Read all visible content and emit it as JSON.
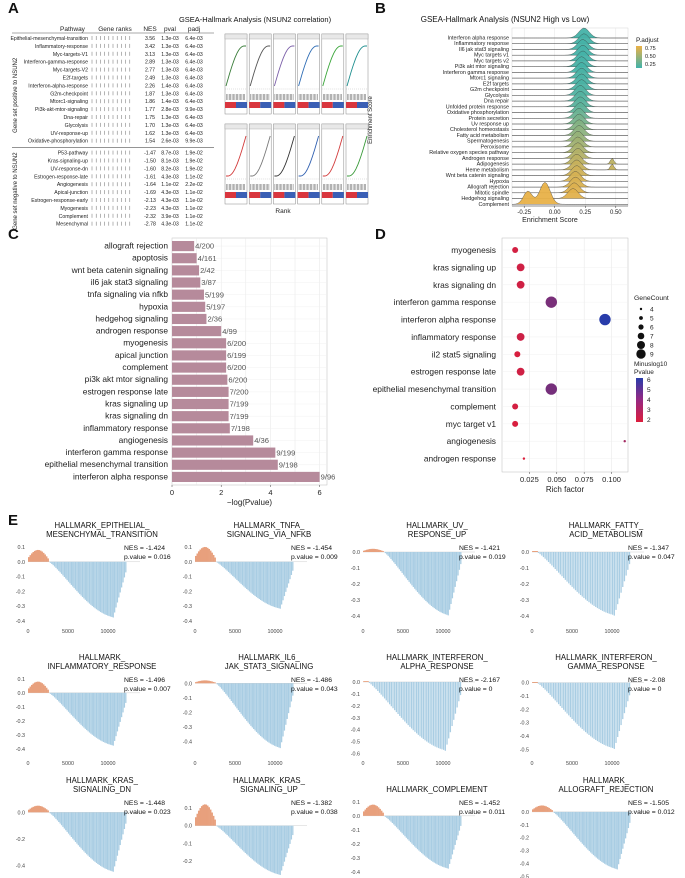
{
  "panels": {
    "a": "A",
    "b": "B",
    "c": "C",
    "d": "D",
    "e": "E"
  },
  "chart_data": [
    {
      "id": "A",
      "type": "table",
      "title": "GSEA-Hallmark Analysis (NSUN2 correlation)",
      "columns": [
        "Pathway",
        "Gene ranks",
        "NES",
        "pval",
        "padj"
      ],
      "group_labels": [
        "Gene set positive to NSUN2",
        "Gene set negative to NSUN2"
      ],
      "xlabel": "Rank",
      "ylabel": "Enrichment Score",
      "positive": [
        {
          "pathway": "Epithelial-mesenchymal-transition",
          "nes": "3.56",
          "pval": "1.3e-03",
          "padj": "6.4e-03"
        },
        {
          "pathway": "Inflammatory-response",
          "nes": "3.42",
          "pval": "1.3e-03",
          "padj": "6.4e-03"
        },
        {
          "pathway": "Myc-targets-V1",
          "nes": "3.13",
          "pval": "1.3e-03",
          "padj": "6.4e-03"
        },
        {
          "pathway": "Interferon-gamma-response",
          "nes": "2.89",
          "pval": "1.3e-03",
          "padj": "6.4e-03"
        },
        {
          "pathway": "Myc-targets-V2",
          "nes": "2.77",
          "pval": "1.3e-03",
          "padj": "6.4e-03"
        },
        {
          "pathway": "E2f-targets",
          "nes": "2.49",
          "pval": "1.3e-03",
          "padj": "6.4e-03"
        },
        {
          "pathway": "Interferon-alpha-response",
          "nes": "2.26",
          "pval": "1.4e-03",
          "padj": "6.4e-03"
        },
        {
          "pathway": "G2m-checkpoint",
          "nes": "1.87",
          "pval": "1.3e-03",
          "padj": "6.4e-03"
        },
        {
          "pathway": "Mtorc1-signaling",
          "nes": "1.86",
          "pval": "1.4e-03",
          "padj": "6.4e-03"
        },
        {
          "pathway": "Pi3k-akt-mtor-signaling",
          "nes": "1.77",
          "pval": "2.8e-03",
          "padj": "9.9e-03"
        },
        {
          "pathway": "Dna-repair",
          "nes": "1.75",
          "pval": "1.3e-03",
          "padj": "6.4e-03"
        },
        {
          "pathway": "Glycolysis",
          "nes": "1.70",
          "pval": "1.3e-03",
          "padj": "6.4e-03"
        },
        {
          "pathway": "UV-response-up",
          "nes": "1.62",
          "pval": "1.3e-03",
          "padj": "6.4e-03"
        },
        {
          "pathway": "Oxidative-phosphorylation",
          "nes": "1.54",
          "pval": "2.6e-03",
          "padj": "9.9e-03"
        }
      ],
      "negative": [
        {
          "pathway": "P53-pathway",
          "nes": "-1.47",
          "pval": "8.7e-03",
          "padj": "1.9e-02"
        },
        {
          "pathway": "Kras-signaling-up",
          "nes": "-1.50",
          "pval": "8.1e-03",
          "padj": "1.9e-02"
        },
        {
          "pathway": "UV-response-dn",
          "nes": "-1.60",
          "pval": "8.2e-03",
          "padj": "1.9e-02"
        },
        {
          "pathway": "Estrogen-response-late",
          "nes": "-1.61",
          "pval": "4.3e-03",
          "padj": "1.1e-02"
        },
        {
          "pathway": "Angiogenesis",
          "nes": "-1.64",
          "pval": "1.1e-02",
          "padj": "2.2e-02"
        },
        {
          "pathway": "Apical-junction",
          "nes": "-1.69",
          "pval": "4.3e-03",
          "padj": "1.1e-02"
        },
        {
          "pathway": "Estrogen-response-early",
          "nes": "-2.13",
          "pval": "4.3e-03",
          "padj": "1.1e-02"
        },
        {
          "pathway": "Myogenesis",
          "nes": "-2.23",
          "pval": "4.3e-03",
          "padj": "1.1e-02"
        },
        {
          "pathway": "Complement",
          "nes": "-2.32",
          "pval": "3.9e-03",
          "padj": "1.1e-02"
        },
        {
          "pathway": "Mesenchymal",
          "nes": "-2.78",
          "pval": "4.3e-03",
          "padj": "1.1e-02"
        }
      ],
      "thumb_colors": [
        "#3a7d3a",
        "#555555",
        "#7b5fa8",
        "#2f6db5",
        "#3aa63a",
        "#1f8f8f"
      ],
      "thumb_colors_neg": [
        "#d23b3b",
        "#7a7a7a",
        "#333333",
        "#2f5fb0",
        "#d23b3b",
        "#3a9a3a"
      ]
    },
    {
      "id": "B",
      "type": "area",
      "title": "GSEA-Hallmark Analysis (NSUN2 High vs Low)",
      "xlabel": "Enrichment Score",
      "xlim": [
        -0.35,
        0.6
      ],
      "xticks": [
        "-0.25",
        "0.00",
        "0.25",
        "0.50"
      ],
      "legend_title": "P.adjust",
      "legend_ticks": [
        "0.75",
        "0.50",
        "0.25"
      ],
      "legend_position": "right",
      "rows": [
        {
          "name": "Interferon alpha response",
          "center": 0.24,
          "padj": 0.02
        },
        {
          "name": "Inflammatory response",
          "center": 0.24,
          "padj": 0.03
        },
        {
          "name": "Il6 jak stat3 signaling",
          "center": 0.23,
          "padj": 0.03
        },
        {
          "name": "Myc targets v1",
          "center": 0.23,
          "padj": 0.02
        },
        {
          "name": "Myc targets v2",
          "center": 0.23,
          "padj": 0.02
        },
        {
          "name": "Pi3k akt mtor signaling",
          "center": 0.22,
          "padj": 0.04
        },
        {
          "name": "Interferon gamma response",
          "center": 0.22,
          "padj": 0.03
        },
        {
          "name": "Mtorc1 signaling",
          "center": 0.22,
          "padj": 0.05
        },
        {
          "name": "E2f targets",
          "center": 0.22,
          "padj": 0.05
        },
        {
          "name": "G2m checkpoint",
          "center": 0.22,
          "padj": 0.06
        },
        {
          "name": "Glycolysis",
          "center": 0.21,
          "padj": 0.08
        },
        {
          "name": "Dna repair",
          "center": 0.21,
          "padj": 0.1
        },
        {
          "name": "Unfolded protein response",
          "center": 0.21,
          "padj": 0.12
        },
        {
          "name": "Oxidative phosphorylation",
          "center": 0.21,
          "padj": 0.15
        },
        {
          "name": "Protein secretion",
          "center": 0.2,
          "padj": 0.22
        },
        {
          "name": "Uv response up",
          "center": 0.2,
          "padj": 0.28
        },
        {
          "name": "Cholesterol homeostasis",
          "center": 0.2,
          "padj": 0.35
        },
        {
          "name": "Fatty acid metabolism",
          "center": 0.2,
          "padj": 0.4
        },
        {
          "name": "Spermatogenesis",
          "center": 0.19,
          "padj": 0.45
        },
        {
          "name": "Peroxisome",
          "center": 0.19,
          "padj": 0.5
        },
        {
          "name": "Relative oxygen species pathway",
          "center": 0.19,
          "padj": 0.55
        },
        {
          "name": "Androgen response",
          "center": 0.19,
          "padj": 0.6
        },
        {
          "name": "Adipogenesis",
          "center": 0.18,
          "padj": 0.65
        },
        {
          "name": "Heme metabolism",
          "center": 0.18,
          "padj": 0.7
        },
        {
          "name": "Wnt beta catenin signaling",
          "center": 0.18,
          "padj": 0.75
        },
        {
          "name": "Hypoxia",
          "center": 0.17,
          "padj": 0.78
        },
        {
          "name": "Allograft rejection",
          "center": 0.17,
          "padj": 0.8
        },
        {
          "name": "Mitotic spindle",
          "center": 0.16,
          "padj": 0.82
        },
        {
          "name": "Hedgehog signaling",
          "center": 0.15,
          "padj": 0.85
        },
        {
          "name": "Complement",
          "center": -0.08,
          "padj": 0.88
        }
      ]
    },
    {
      "id": "C",
      "type": "bar",
      "xlabel": "−log(Pvalue)",
      "xlim": [
        0,
        6.3
      ],
      "xticks": [
        "0",
        "2",
        "4",
        "6"
      ],
      "bar_color": "#b68a9b",
      "categories": [
        "allograft rejection",
        "apoptosis",
        "wnt beta catenin signaling",
        "il6 jak stat3 signaling",
        "tnfa signaling via nfkb",
        "hypoxia",
        "hedgehog signaling",
        "androgen response",
        "myogenesis",
        "apical junction",
        "complement",
        "pi3k akt mtor signaling",
        "estrogen response late",
        "kras signaling up",
        "kras signaling dn",
        "inflammatory response",
        "angiogenesis",
        "interferon gamma response",
        "epithelial mesenchymal transition",
        "interferon alpha response"
      ],
      "values": [
        0.9,
        1.0,
        1.1,
        1.15,
        1.3,
        1.35,
        1.4,
        2.0,
        2.2,
        2.2,
        2.2,
        2.25,
        2.3,
        2.3,
        2.3,
        2.35,
        3.3,
        4.2,
        4.3,
        6.0
      ],
      "labels": [
        "4/200",
        "4/161",
        "2/42",
        "3/87",
        "5/199",
        "5/197",
        "2/36",
        "4/99",
        "6/200",
        "6/199",
        "6/200",
        "6/200",
        "7/200",
        "7/199",
        "7/199",
        "7/198",
        "4/36",
        "9/199",
        "9/198",
        "9/96"
      ]
    },
    {
      "id": "D",
      "type": "scatter",
      "xlabel": "Rich factor",
      "xlim": [
        0.0,
        0.115
      ],
      "xticks": [
        "0.025",
        "0.050",
        "0.075",
        "0.100"
      ],
      "xtick_values": [
        0.025,
        0.05,
        0.075,
        0.1
      ],
      "size_legend_title": "GeneCount",
      "size_legend": [
        "4",
        "5",
        "6",
        "7",
        "8",
        "9"
      ],
      "color_legend_title": "Minuslog10 Pvalue",
      "color_legend_ticks": [
        "6",
        "5",
        "4",
        "3",
        "2"
      ],
      "categories": [
        "myogenesis",
        "kras signaling up",
        "kras signaling dn",
        "interferon gamma response",
        "interferon alpha response",
        "inflammatory response",
        "il2 stat5 signaling",
        "estrogen response late",
        "epithelial mesenchymal transition",
        "complement",
        "myc target v1",
        "angiogenesis",
        "androgen response"
      ],
      "x": [
        0.012,
        0.017,
        0.017,
        0.045,
        0.094,
        0.017,
        0.014,
        0.017,
        0.045,
        0.012,
        0.012,
        0.112,
        0.02
      ],
      "count": [
        6,
        7,
        7,
        9,
        9,
        7,
        6,
        7,
        9,
        6,
        6,
        4,
        4
      ],
      "minuslog10p": [
        2.2,
        2.3,
        2.3,
        4.2,
        6.0,
        2.35,
        2.1,
        2.3,
        4.3,
        2.2,
        2.1,
        3.3,
        2.0
      ]
    },
    {
      "id": "E",
      "type": "line",
      "ylabel": "",
      "xticks": [
        "0",
        "5000",
        "10000"
      ],
      "plots": [
        {
          "title": [
            "HALLMARK_EPITHELIAL_",
            "MESENCHYMAL_TRANSITION"
          ],
          "nes": "NES = -1.424",
          "pval": "p.value = 0.016",
          "pos_peak": 0.08,
          "neg_peak": -0.38,
          "ylim": [
            -0.42,
            0.12
          ],
          "yticks": [
            "0.1",
            "0.0",
            "-0.1",
            "-0.2",
            "-0.3",
            "-0.4"
          ]
        },
        {
          "title": [
            "HALLMARK_TNFA_",
            "SIGNALING_VIA_NFKB"
          ],
          "nes": "NES = -1.454",
          "pval": "p.value = 0.009",
          "pos_peak": 0.1,
          "neg_peak": -0.32,
          "ylim": [
            -0.42,
            0.12
          ],
          "yticks": [
            "0.1",
            "0.0",
            "-0.1",
            "-0.2",
            "-0.3",
            "-0.4"
          ]
        },
        {
          "title": [
            "HALLMARK_UV_",
            "RESPONSE_UP"
          ],
          "nes": "NES = -1.421",
          "pval": "p.value = 0.019",
          "pos_peak": 0.02,
          "neg_peak": -0.4,
          "ylim": [
            -0.45,
            0.05
          ],
          "yticks": [
            "0.0",
            "-0.1",
            "-0.2",
            "-0.3",
            "-0.4"
          ]
        },
        {
          "title": [
            "HALLMARK_FATTY_",
            "ACID_METABOLISM"
          ],
          "nes": "NES = -1.347",
          "pval": "p.value = 0.047",
          "pos_peak": 0.0,
          "neg_peak": -0.4,
          "ylim": [
            -0.45,
            0.05
          ],
          "yticks": [
            "0.0",
            "-0.1",
            "-0.2",
            "-0.3",
            "-0.4"
          ]
        },
        {
          "title": [
            "HALLMARK_",
            "INFLAMMATORY_RESPONSE"
          ],
          "nes": "NES = -1.496",
          "pval": "p.value = 0.007",
          "pos_peak": 0.08,
          "neg_peak": -0.38,
          "ylim": [
            -0.45,
            0.12
          ],
          "yticks": [
            "0.1",
            "0.0",
            "-0.1",
            "-0.2",
            "-0.3",
            "-0.4"
          ]
        },
        {
          "title": [
            "HALLMARK_IL6_",
            "JAK_STAT3_SIGNALING"
          ],
          "nes": "NES = -1.486",
          "pval": "p.value = 0.043",
          "pos_peak": 0.02,
          "neg_peak": -0.45,
          "ylim": [
            -0.5,
            0.05
          ],
          "yticks": [
            "0.0",
            "-0.1",
            "-0.2",
            "-0.3",
            "-0.4"
          ]
        },
        {
          "title": [
            "HALLMARK_INTERFERON_",
            "ALPHA_RESPONSE"
          ],
          "nes": "NES = -2.167",
          "pval": "p.value = 0",
          "pos_peak": 0.0,
          "neg_peak": -0.58,
          "ylim": [
            -0.62,
            0.05
          ],
          "yticks": [
            "0.0",
            "-0.1",
            "-0.2",
            "-0.3",
            "-0.4",
            "-0.5",
            "-0.6"
          ]
        },
        {
          "title": [
            "HALLMARK_INTERFERON_",
            "GAMMA_RESPONSE"
          ],
          "nes": "NES = -2.08",
          "pval": "p.value = 0",
          "pos_peak": 0.0,
          "neg_peak": -0.5,
          "ylim": [
            -0.55,
            0.05
          ],
          "yticks": [
            "0.0",
            "-0.1",
            "-0.2",
            "-0.3",
            "-0.4",
            "-0.5"
          ]
        },
        {
          "title": [
            "HALLMARK_KRAS_",
            "SIGNALING_DN"
          ],
          "nes": "NES = -1.448",
          "pval": "p.value = 0.023",
          "pos_peak": 0.05,
          "neg_peak": -0.45,
          "ylim": [
            -0.5,
            0.1
          ],
          "yticks": [
            "0.0",
            "-0.2",
            "-0.4"
          ]
        },
        {
          "title": [
            "HALLMARK_KRAS_",
            "SIGNALING_UP"
          ],
          "nes": "NES = -1.382",
          "pval": "p.value = 0.038",
          "pos_peak": 0.12,
          "neg_peak": -0.28,
          "ylim": [
            -0.3,
            0.15
          ],
          "yticks": [
            "0.1",
            "0.0",
            "-0.1",
            "-0.2"
          ]
        },
        {
          "title": [
            "HALLMARK_COMPLEMENT"
          ],
          "nes": "NES = -1.452",
          "pval": "p.value = 0.011",
          "pos_peak": 0.08,
          "neg_peak": -0.38,
          "ylim": [
            -0.45,
            0.12
          ],
          "yticks": [
            "0.1",
            "0.0",
            "-0.1",
            "-0.2",
            "-0.3",
            "-0.4"
          ]
        },
        {
          "title": [
            "HALLMARK_",
            "ALLOGRAFT_REJECTION"
          ],
          "nes": "NES = -1.505",
          "pval": "p.value = 0.012",
          "pos_peak": 0.05,
          "neg_peak": -0.45,
          "ylim": [
            -0.52,
            0.1
          ],
          "yticks": [
            "0.0",
            "-0.1",
            "-0.2",
            "-0.3",
            "-0.4",
            "-0.5"
          ]
        }
      ]
    }
  ]
}
